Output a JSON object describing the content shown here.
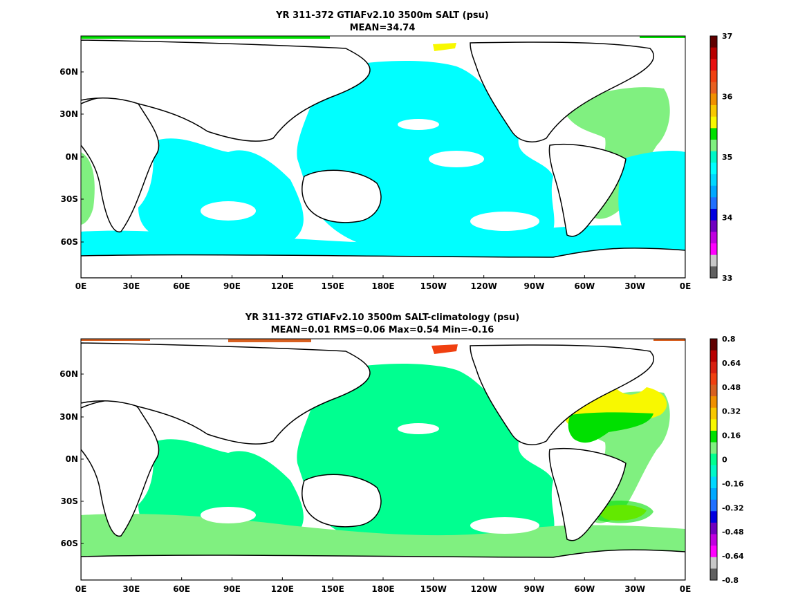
{
  "panels": [
    {
      "title_line1": "YR 311-372 GTIAFv2.10 3500m SALT (psu)",
      "title_line2": "MEAN=34.74",
      "variable": "SALT",
      "units": "psu",
      "colorbar_labels": [
        "37",
        "36",
        "35",
        "34",
        "33"
      ],
      "colorbar_range": [
        33,
        37
      ],
      "colorbar_colors": [
        "#600000",
        "#b80000",
        "#e81010",
        "#f04010",
        "#e86020",
        "#f09000",
        "#f8c800",
        "#f8f800",
        "#00e000",
        "#80f080",
        "#00f8c8",
        "#00ffff",
        "#00d8ff",
        "#00a8ff",
        "#2070ff",
        "#0000e0",
        "#7000c0",
        "#c000e0",
        "#ff00ff",
        "#c8c8c8",
        "#606060"
      ],
      "regions": [
        {
          "name": "Pacific basin",
          "value": "34.75 (cyan)",
          "color": "#00ffff"
        },
        {
          "name": "Indian Ocean",
          "value": "34.75 (cyan)",
          "color": "#00ffff"
        },
        {
          "name": "Atlantic",
          "value": "35.0 (light green)",
          "color": "#80f080"
        },
        {
          "name": "Arctic spot",
          "value": "35.5 (yellow)",
          "color": "#f8f800"
        }
      ]
    },
    {
      "title_line1": "YR 311-372 GTIAFv2.10 3500m SALT-climatology (psu)",
      "title_line2": "MEAN=0.01   RMS=0.06   Max=0.54   Min=-0.16",
      "stats": {
        "mean": 0.01,
        "rms": 0.06,
        "max": 0.54,
        "min": -0.16
      },
      "colorbar_labels": [
        "0.8",
        "0.64",
        "0.48",
        "0.32",
        "0.16",
        "0",
        "-0.16",
        "-0.32",
        "-0.48",
        "-0.64",
        "-0.8"
      ],
      "colorbar_range": [
        -0.8,
        0.8
      ],
      "colorbar_colors": [
        "#600000",
        "#b80000",
        "#d82010",
        "#f04010",
        "#d86020",
        "#f09000",
        "#f8c800",
        "#f8f800",
        "#00e000",
        "#80f080",
        "#00ff90",
        "#00f8c8",
        "#00d8ff",
        "#00a8ff",
        "#2070ff",
        "#0000e0",
        "#7000c0",
        "#c000e0",
        "#ff00ff",
        "#c8c8c8",
        "#606060"
      ],
      "regions": [
        {
          "name": "Pacific basin",
          "value": "0 to -0.16",
          "color": "#00ff90"
        },
        {
          "name": "Southern Ocean",
          "value": "0 to 0.16",
          "color": "#80f080"
        },
        {
          "name": "North Atlantic",
          "value": "0.16 to 0.48",
          "color": "#f8f800"
        },
        {
          "name": "Arctic spot",
          "value": "0.48 to 0.64",
          "color": "#f04010"
        }
      ]
    }
  ],
  "axes": {
    "x_ticks": [
      "0E",
      "30E",
      "60E",
      "90E",
      "120E",
      "150E",
      "180E",
      "150W",
      "120W",
      "90W",
      "60W",
      "30W",
      "0E"
    ],
    "y_ticks": [
      "60N",
      "30N",
      "0N",
      "30S",
      "60S"
    ]
  },
  "colors": {
    "land": "#ffffff",
    "coastline": "#000000",
    "background": "#ffffff"
  }
}
